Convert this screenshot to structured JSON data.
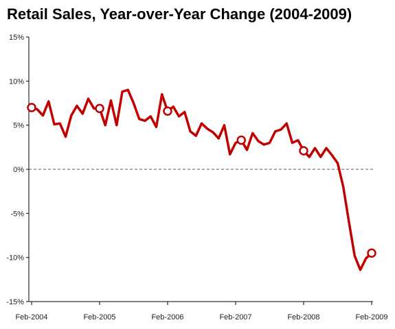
{
  "chart_data": {
    "type": "line",
    "title": "Retail Sales, Year-over-Year Change (2004-2009)",
    "xlabel": "",
    "ylabel": "",
    "ylim": [
      -15,
      15
    ],
    "y_ticks": [
      "15%",
      "10%",
      "5%",
      "0%",
      "-5%",
      "-10%",
      "-15%"
    ],
    "y_tick_values": [
      15,
      10,
      5,
      0,
      -5,
      -10,
      -15
    ],
    "x_ticks": [
      "Feb-2004",
      "Feb-2005",
      "Feb-2006",
      "Feb-2007",
      "Feb-2008",
      "Feb-2009"
    ],
    "x_tick_indices": [
      0,
      12,
      24,
      36,
      48,
      60
    ],
    "zero_line": "dashed",
    "grid": false,
    "series": [
      {
        "color": "#c00000",
        "values": [
          7.0,
          6.8,
          6.1,
          7.7,
          5.1,
          5.2,
          3.7,
          6.1,
          7.2,
          6.3,
          8.0,
          6.9,
          6.9,
          5.0,
          7.8,
          5.0,
          8.8,
          9.0,
          7.5,
          5.7,
          5.5,
          6.0,
          4.8,
          8.5,
          6.6,
          7.1,
          6.0,
          6.5,
          4.3,
          3.8,
          5.2,
          4.6,
          4.2,
          3.5,
          5.0,
          1.7,
          3.0,
          3.3,
          2.2,
          4.1,
          3.2,
          2.8,
          3.0,
          4.3,
          4.5,
          5.2,
          3.0,
          3.3,
          2.1,
          1.4,
          2.4,
          1.4,
          2.4,
          1.6,
          0.7,
          -2.0,
          -6.0,
          -9.8,
          -11.4,
          -10.1,
          -9.5
        ],
        "marker_indices": [
          0,
          12,
          24,
          37,
          48,
          60
        ]
      }
    ]
  }
}
